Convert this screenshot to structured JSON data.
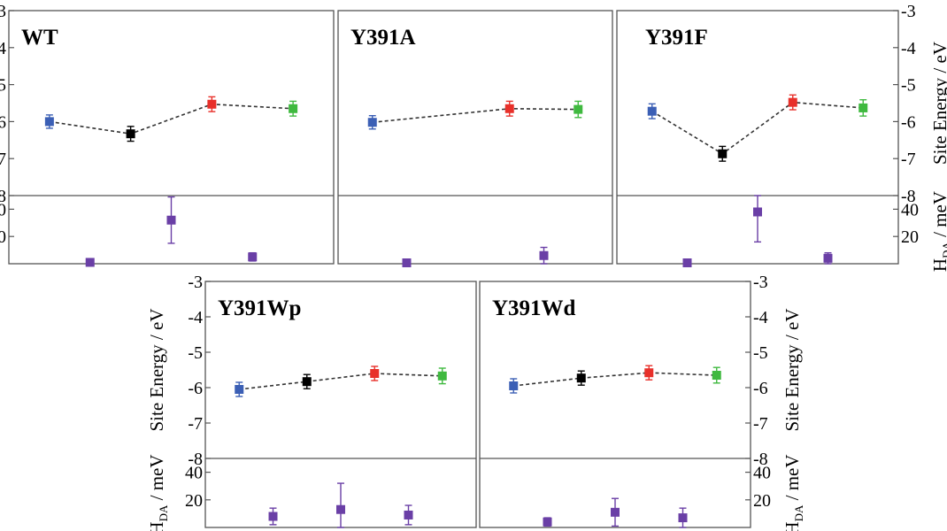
{
  "colors": {
    "site1": "#3b5fb5",
    "site2": "#000000",
    "site3": "#e8302a",
    "site4": "#3fb93f",
    "coupling": "#6a3fa6",
    "frame": "#555555",
    "dash": "#333333"
  },
  "labels": {
    "site_energy_axis": "Site Energy / eV",
    "hda_axis_main": "H",
    "hda_axis_sub": "DA",
    "hda_axis_unit": " / meV"
  },
  "chart_data": [
    {
      "type": "scatter",
      "title": "WT",
      "ylabel": "Site Energy / eV",
      "site_energy": {
        "ylim": [
          -8,
          -3
        ],
        "yticks": [
          -3,
          -4,
          -5,
          -6,
          -7,
          -8
        ],
        "values": [
          -6.0,
          -6.33,
          -5.53,
          -5.65
        ],
        "errors": [
          0.18,
          0.2,
          0.2,
          0.2
        ],
        "connected": true
      },
      "coupling": {
        "ylabel": "HDA / meV",
        "ylim": [
          0,
          50
        ],
        "yticks": [
          20,
          40
        ],
        "x": [
          1.5,
          2.5,
          3.5
        ],
        "values": [
          1,
          32,
          5
        ],
        "errors": [
          0,
          17,
          3
        ]
      }
    },
    {
      "type": "scatter",
      "title": "Y391A",
      "ylabel": "Site Energy / eV",
      "site_energy": {
        "ylim": [
          -8,
          -3
        ],
        "yticks": [
          -3,
          -4,
          -5,
          -6,
          -7,
          -8
        ],
        "values": [
          -6.02,
          null,
          -5.65,
          -5.67
        ],
        "errors": [
          0.18,
          null,
          0.2,
          0.22
        ],
        "connected": true
      },
      "coupling": {
        "ylabel": "HDA / meV",
        "ylim": [
          0,
          50
        ],
        "yticks": [
          20,
          40
        ],
        "x": [
          1.5,
          2.5,
          3.5
        ],
        "values": [
          0,
          null,
          6
        ],
        "errors": [
          0,
          null,
          6
        ]
      }
    },
    {
      "type": "scatter",
      "title": "Y391F",
      "ylabel": "Site Energy / eV",
      "site_energy": {
        "ylim": [
          -8,
          -3
        ],
        "yticks": [
          -3,
          -4,
          -5,
          -6,
          -7,
          -8
        ],
        "values": [
          -5.72,
          -6.87,
          -5.48,
          -5.63
        ],
        "errors": [
          0.2,
          0.2,
          0.2,
          0.22
        ],
        "connected": true
      },
      "coupling": {
        "ylabel": "HDA / meV",
        "ylim": [
          0,
          50
        ],
        "yticks": [
          20,
          40
        ],
        "x": [
          1.5,
          2.5,
          3.5
        ],
        "values": [
          0,
          38,
          4
        ],
        "errors": [
          0,
          22,
          4
        ]
      }
    },
    {
      "type": "scatter",
      "title": "Y391Wp",
      "ylabel": "Site Energy / eV",
      "site_energy": {
        "ylim": [
          -8,
          -3
        ],
        "yticks": [
          -3,
          -4,
          -5,
          -6,
          -7,
          -8
        ],
        "values": [
          -6.05,
          -5.83,
          -5.6,
          -5.67
        ],
        "errors": [
          0.2,
          0.2,
          0.2,
          0.22
        ],
        "connected": true
      },
      "coupling": {
        "ylabel": "HDA / meV",
        "ylim": [
          0,
          50
        ],
        "yticks": [
          20,
          40
        ],
        "x": [
          1.5,
          2.5,
          3.5
        ],
        "values": [
          8,
          13,
          9
        ],
        "errors": [
          6,
          19,
          7
        ]
      }
    },
    {
      "type": "scatter",
      "title": "Y391Wd",
      "ylabel": "Site Energy / eV",
      "site_energy": {
        "ylim": [
          -8,
          -3
        ],
        "yticks": [
          -3,
          -4,
          -5,
          -6,
          -7,
          -8
        ],
        "values": [
          -5.95,
          -5.73,
          -5.58,
          -5.65
        ],
        "errors": [
          0.2,
          0.2,
          0.2,
          0.22
        ],
        "connected": true
      },
      "coupling": {
        "ylabel": "HDA / meV",
        "ylim": [
          0,
          50
        ],
        "yticks": [
          20,
          40
        ],
        "x": [
          1.5,
          2.5,
          3.5
        ],
        "values": [
          4,
          11,
          7
        ],
        "errors": [
          3,
          10,
          7
        ]
      }
    }
  ]
}
